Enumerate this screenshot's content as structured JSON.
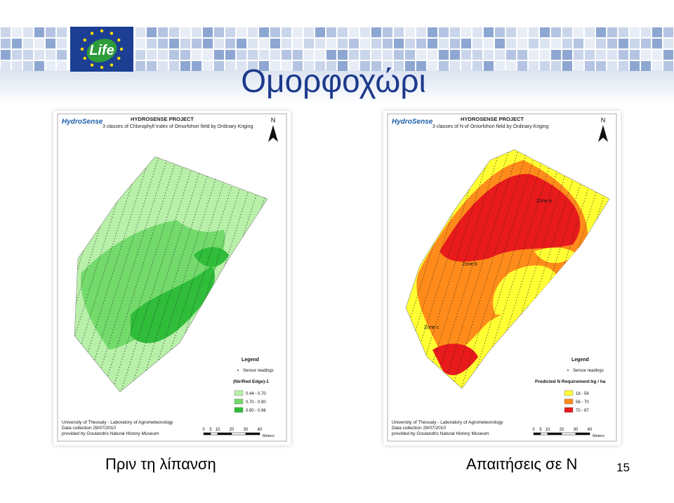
{
  "slide": {
    "title": "Ομορφοχώρι",
    "logo": "Life",
    "page_number": "15"
  },
  "maps": [
    {
      "brand": "HydroSense",
      "project": "HYDROSENSE PROJECT",
      "subtitle": "3 classes of Chlorophyll Index of Omorfohori field by Ordinary Kriging",
      "north": "N",
      "legend_title": "Legend",
      "sensor_readings": "Sensor readings",
      "legend_heading": "(Nir/Red Edge)-1",
      "legend_items": [
        "0.44 - 0.70",
        "0.70 - 0.90",
        "0.90 - 0.96"
      ],
      "credits": [
        "University of Thessaly - Laboratory of Agrometeorology",
        "Data collection 29/07/2010",
        "provided by Goulandris Natural History Museum"
      ],
      "scale_labels": [
        0,
        5,
        10,
        20,
        30,
        40
      ],
      "scale_unit": "Meters",
      "caption": "Πριν τη λίπανση"
    },
    {
      "brand": "HydroSense",
      "project": "HYDROSENSE PROJECT",
      "subtitle": "3 classes of N of Omorfohori field by Ordinary Kriging",
      "north": "N",
      "legend_title": "Legend",
      "sensor_readings": "Sensor readings",
      "legend_heading": "Predicted N Requirement:kg / ha",
      "legend_items": [
        "18 - 56",
        "56 - 70",
        "70 - 87"
      ],
      "zones": [
        "Zone a",
        "Zone b",
        "Zone c"
      ],
      "credits": [
        "University of Thessaly - Laboratory of Agrometeorology",
        "Data collection 29/07/2010",
        "provided by Goulandris Natural History Museum"
      ],
      "scale_labels": [
        0,
        5,
        10,
        20,
        30,
        40
      ],
      "scale_unit": "Meters",
      "caption": "Απαιτήσεις σε Ν"
    }
  ]
}
